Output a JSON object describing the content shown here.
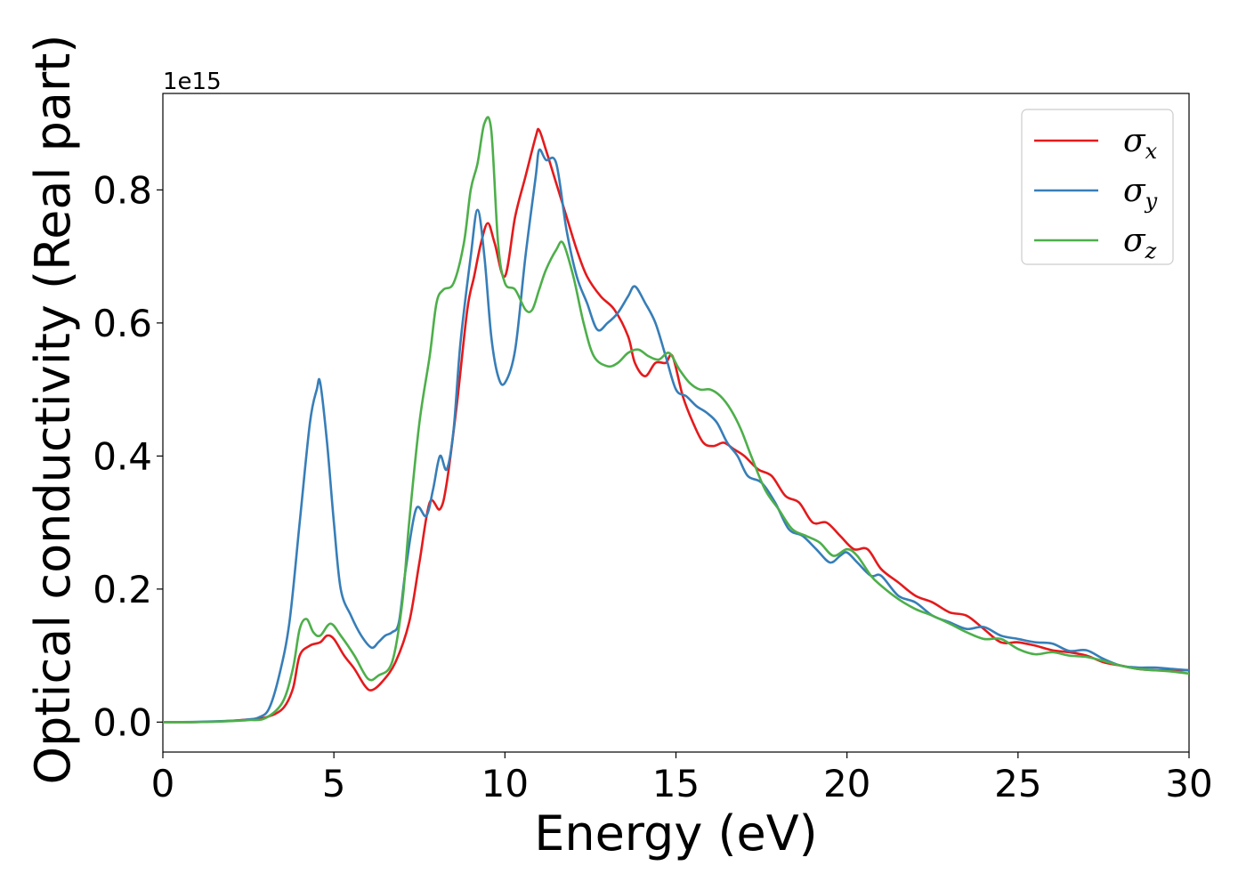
{
  "chart_data": {
    "type": "line",
    "xlabel": "Energy (eV)",
    "ylabel": "Optical conductivity (Real part)",
    "y_offset_text": "1e15",
    "xlim": [
      0,
      30
    ],
    "ylim": [
      -0.045,
      0.945
    ],
    "xticks": [
      0,
      5,
      10,
      15,
      20,
      25,
      30
    ],
    "xtick_labels": [
      "0",
      "5",
      "10",
      "15",
      "20",
      "25",
      "30"
    ],
    "yticks": [
      0.0,
      0.2,
      0.4,
      0.6,
      0.8
    ],
    "ytick_labels": [
      "0.0",
      "0.2",
      "0.4",
      "0.6",
      "0.8"
    ],
    "grid": false,
    "legend_position": "top-right",
    "series": [
      {
        "name": "σx",
        "symbol": "σ",
        "sub": "x",
        "color": "#e41a1c",
        "x": [
          0,
          1,
          2,
          2.5,
          3,
          3.5,
          3.8,
          4.0,
          4.3,
          4.6,
          4.8,
          5.0,
          5.3,
          5.6,
          5.9,
          6.1,
          6.4,
          6.8,
          7.2,
          7.5,
          7.8,
          8.1,
          8.3,
          8.6,
          8.9,
          9.1,
          9.3,
          9.5,
          9.7,
          10.0,
          10.3,
          10.6,
          10.9,
          11.0,
          11.2,
          11.5,
          11.8,
          12.1,
          12.4,
          12.8,
          13.2,
          13.6,
          13.8,
          14.1,
          14.4,
          14.7,
          14.9,
          15.2,
          15.5,
          15.8,
          16.1,
          16.4,
          16.7,
          17.0,
          17.4,
          17.8,
          18.2,
          18.6,
          19.0,
          19.4,
          19.8,
          20.2,
          20.6,
          21.0,
          21.5,
          22.0,
          22.5,
          23.0,
          23.5,
          24.0,
          24.5,
          25.0,
          25.5,
          26.0,
          26.5,
          27.0,
          27.5,
          28.0,
          28.5,
          29.0,
          29.5,
          30.0
        ],
        "y": [
          0,
          0,
          0.002,
          0.004,
          0.007,
          0.02,
          0.05,
          0.1,
          0.115,
          0.12,
          0.13,
          0.125,
          0.1,
          0.08,
          0.055,
          0.048,
          0.06,
          0.09,
          0.15,
          0.24,
          0.33,
          0.32,
          0.36,
          0.48,
          0.62,
          0.67,
          0.72,
          0.75,
          0.72,
          0.67,
          0.76,
          0.82,
          0.88,
          0.89,
          0.86,
          0.81,
          0.76,
          0.71,
          0.67,
          0.64,
          0.62,
          0.58,
          0.54,
          0.52,
          0.54,
          0.54,
          0.55,
          0.49,
          0.45,
          0.42,
          0.415,
          0.42,
          0.41,
          0.4,
          0.38,
          0.37,
          0.34,
          0.33,
          0.3,
          0.3,
          0.28,
          0.26,
          0.26,
          0.23,
          0.21,
          0.19,
          0.18,
          0.165,
          0.16,
          0.14,
          0.12,
          0.12,
          0.115,
          0.108,
          0.105,
          0.1,
          0.09,
          0.085,
          0.08,
          0.078,
          0.078,
          0.078
        ]
      },
      {
        "name": "σy",
        "symbol": "σ",
        "sub": "y",
        "color": "#377eb8",
        "x": [
          0,
          1,
          2,
          2.5,
          2.8,
          3.1,
          3.4,
          3.7,
          4.0,
          4.3,
          4.5,
          4.6,
          4.8,
          5.0,
          5.2,
          5.5,
          5.8,
          6.1,
          6.3,
          6.5,
          6.7,
          6.9,
          7.1,
          7.4,
          7.7,
          7.9,
          8.1,
          8.3,
          8.5,
          8.7,
          9.0,
          9.2,
          9.4,
          9.6,
          9.8,
          10.0,
          10.3,
          10.6,
          10.9,
          11.0,
          11.2,
          11.5,
          11.8,
          12.1,
          12.4,
          12.7,
          13.0,
          13.3,
          13.6,
          13.8,
          14.1,
          14.4,
          14.7,
          15.0,
          15.3,
          15.6,
          15.9,
          16.2,
          16.5,
          16.8,
          17.1,
          17.5,
          17.9,
          18.3,
          18.7,
          19.1,
          19.5,
          19.8,
          20.0,
          20.3,
          20.7,
          21.0,
          21.5,
          22.0,
          22.5,
          23.0,
          23.5,
          24.0,
          24.5,
          25.0,
          25.5,
          26.0,
          26.5,
          27.0,
          27.5,
          28.0,
          28.5,
          29.0,
          29.5,
          30.0
        ],
        "y": [
          0,
          0.0005,
          0.002,
          0.004,
          0.007,
          0.02,
          0.07,
          0.15,
          0.3,
          0.45,
          0.5,
          0.51,
          0.42,
          0.3,
          0.2,
          0.16,
          0.13,
          0.112,
          0.12,
          0.13,
          0.135,
          0.15,
          0.23,
          0.32,
          0.31,
          0.35,
          0.4,
          0.38,
          0.44,
          0.57,
          0.7,
          0.77,
          0.7,
          0.58,
          0.52,
          0.51,
          0.56,
          0.7,
          0.82,
          0.86,
          0.845,
          0.84,
          0.74,
          0.67,
          0.63,
          0.59,
          0.6,
          0.615,
          0.64,
          0.655,
          0.63,
          0.6,
          0.55,
          0.5,
          0.49,
          0.475,
          0.465,
          0.45,
          0.42,
          0.4,
          0.37,
          0.36,
          0.33,
          0.29,
          0.28,
          0.26,
          0.24,
          0.25,
          0.255,
          0.24,
          0.22,
          0.22,
          0.19,
          0.18,
          0.16,
          0.15,
          0.14,
          0.143,
          0.13,
          0.125,
          0.12,
          0.118,
          0.107,
          0.108,
          0.095,
          0.085,
          0.082,
          0.082,
          0.08,
          0.078
        ]
      },
      {
        "name": "σz",
        "symbol": "σ",
        "sub": "z",
        "color": "#4daf4a",
        "x": [
          0,
          1,
          2,
          2.5,
          3,
          3.5,
          3.8,
          4.0,
          4.2,
          4.4,
          4.6,
          4.9,
          5.2,
          5.6,
          6.0,
          6.3,
          6.7,
          7.0,
          7.2,
          7.5,
          7.8,
          8.0,
          8.2,
          8.5,
          8.8,
          9.0,
          9.2,
          9.4,
          9.6,
          9.8,
          10.0,
          10.3,
          10.6,
          10.8,
          11.0,
          11.2,
          11.5,
          11.7,
          12.0,
          12.3,
          12.6,
          13.0,
          13.3,
          13.6,
          13.9,
          14.2,
          14.5,
          14.8,
          15.1,
          15.4,
          15.7,
          16.0,
          16.3,
          16.6,
          16.9,
          17.2,
          17.6,
          18.0,
          18.4,
          18.8,
          19.2,
          19.6,
          20.0,
          20.3,
          20.7,
          21.0,
          21.5,
          22.0,
          22.5,
          23.0,
          23.5,
          24.0,
          24.5,
          25.0,
          25.5,
          26.0,
          26.5,
          27.0,
          27.5,
          28.0,
          28.5,
          29.0,
          29.5,
          30.0
        ],
        "y": [
          0,
          0,
          0.0015,
          0.003,
          0.006,
          0.03,
          0.08,
          0.14,
          0.155,
          0.135,
          0.13,
          0.148,
          0.13,
          0.1,
          0.065,
          0.07,
          0.09,
          0.18,
          0.3,
          0.45,
          0.55,
          0.63,
          0.65,
          0.66,
          0.72,
          0.8,
          0.84,
          0.9,
          0.89,
          0.72,
          0.66,
          0.65,
          0.62,
          0.62,
          0.65,
          0.68,
          0.71,
          0.72,
          0.67,
          0.6,
          0.55,
          0.535,
          0.54,
          0.555,
          0.56,
          0.55,
          0.545,
          0.555,
          0.53,
          0.51,
          0.5,
          0.5,
          0.49,
          0.47,
          0.44,
          0.4,
          0.35,
          0.32,
          0.29,
          0.28,
          0.27,
          0.25,
          0.26,
          0.25,
          0.22,
          0.205,
          0.185,
          0.17,
          0.16,
          0.148,
          0.135,
          0.125,
          0.125,
          0.11,
          0.102,
          0.105,
          0.1,
          0.098,
          0.092,
          0.085,
          0.08,
          0.078,
          0.076,
          0.073
        ]
      }
    ]
  }
}
